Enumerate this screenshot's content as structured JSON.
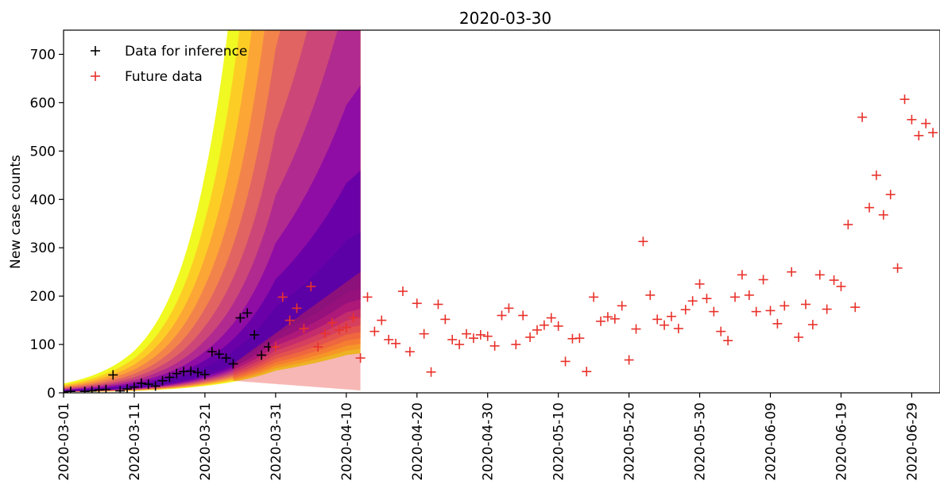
{
  "chart_data": {
    "type": "scatter",
    "title": "2020-03-30",
    "xlabel": "",
    "ylabel": "New case counts",
    "ylim": [
      0,
      750
    ],
    "xlim": [
      "2020-03-01",
      "2020-07-03"
    ],
    "grid": false,
    "legend_placement": "top-left",
    "yticks": [
      0,
      100,
      200,
      300,
      400,
      500,
      600,
      700
    ],
    "xticks": [
      "2020-03-01",
      "2020-03-11",
      "2020-03-21",
      "2020-03-31",
      "2020-04-10",
      "2020-04-20",
      "2020-04-30",
      "2020-05-10",
      "2020-05-20",
      "2020-05-30",
      "2020-06-09",
      "2020-06-19",
      "2020-06-29"
    ],
    "colors": {
      "inference": "#000000",
      "future": "#e8322b",
      "axis": "#000000"
    },
    "series": [
      {
        "name": "Data for inference",
        "marker": "+",
        "points": [
          [
            "2020-03-01",
            2
          ],
          [
            "2020-03-02",
            3
          ],
          [
            "2020-03-04",
            3
          ],
          [
            "2020-03-05",
            4
          ],
          [
            "2020-03-06",
            6
          ],
          [
            "2020-03-07",
            7
          ],
          [
            "2020-03-08",
            37
          ],
          [
            "2020-03-09",
            4
          ],
          [
            "2020-03-10",
            8
          ],
          [
            "2020-03-11",
            12
          ],
          [
            "2020-03-12",
            20
          ],
          [
            "2020-03-13",
            18
          ],
          [
            "2020-03-14",
            14
          ],
          [
            "2020-03-15",
            25
          ],
          [
            "2020-03-16",
            32
          ],
          [
            "2020-03-17",
            40
          ],
          [
            "2020-03-18",
            44
          ],
          [
            "2020-03-19",
            45
          ],
          [
            "2020-03-20",
            42
          ],
          [
            "2020-03-21",
            38
          ],
          [
            "2020-03-22",
            85
          ],
          [
            "2020-03-23",
            80
          ],
          [
            "2020-03-24",
            72
          ],
          [
            "2020-03-25",
            60
          ],
          [
            "2020-03-26",
            155
          ],
          [
            "2020-03-27",
            165
          ],
          [
            "2020-03-28",
            120
          ],
          [
            "2020-03-29",
            78
          ],
          [
            "2020-03-30",
            95
          ]
        ]
      },
      {
        "name": "Future data",
        "marker": "+",
        "points": [
          [
            "2020-03-31",
            95
          ],
          [
            "2020-04-01",
            198
          ],
          [
            "2020-04-02",
            150
          ],
          [
            "2020-04-03",
            175
          ],
          [
            "2020-04-04",
            133
          ],
          [
            "2020-04-05",
            220
          ],
          [
            "2020-04-06",
            95
          ],
          [
            "2020-04-07",
            123
          ],
          [
            "2020-04-08",
            145
          ],
          [
            "2020-04-09",
            130
          ],
          [
            "2020-04-10",
            135
          ],
          [
            "2020-04-11",
            155
          ],
          [
            "2020-04-12",
            72
          ],
          [
            "2020-04-13",
            198
          ],
          [
            "2020-04-14",
            127
          ],
          [
            "2020-04-15",
            150
          ],
          [
            "2020-04-16",
            110
          ],
          [
            "2020-04-17",
            102
          ],
          [
            "2020-04-18",
            210
          ],
          [
            "2020-04-19",
            85
          ],
          [
            "2020-04-20",
            185
          ],
          [
            "2020-04-21",
            122
          ],
          [
            "2020-04-22",
            43
          ],
          [
            "2020-04-23",
            183
          ],
          [
            "2020-04-24",
            152
          ],
          [
            "2020-04-25",
            110
          ],
          [
            "2020-04-26",
            100
          ],
          [
            "2020-04-27",
            122
          ],
          [
            "2020-04-28",
            113
          ],
          [
            "2020-04-29",
            120
          ],
          [
            "2020-04-30",
            117
          ],
          [
            "2020-05-01",
            97
          ],
          [
            "2020-05-02",
            160
          ],
          [
            "2020-05-03",
            175
          ],
          [
            "2020-05-04",
            100
          ],
          [
            "2020-05-05",
            160
          ],
          [
            "2020-05-06",
            115
          ],
          [
            "2020-05-07",
            130
          ],
          [
            "2020-05-08",
            140
          ],
          [
            "2020-05-09",
            155
          ],
          [
            "2020-05-10",
            138
          ],
          [
            "2020-05-11",
            65
          ],
          [
            "2020-05-12",
            112
          ],
          [
            "2020-05-13",
            113
          ],
          [
            "2020-05-14",
            44
          ],
          [
            "2020-05-15",
            198
          ],
          [
            "2020-05-16",
            148
          ],
          [
            "2020-05-17",
            157
          ],
          [
            "2020-05-18",
            153
          ],
          [
            "2020-05-19",
            180
          ],
          [
            "2020-05-20",
            68
          ],
          [
            "2020-05-21",
            132
          ],
          [
            "2020-05-22",
            313
          ],
          [
            "2020-05-23",
            202
          ],
          [
            "2020-05-24",
            152
          ],
          [
            "2020-05-25",
            140
          ],
          [
            "2020-05-26",
            158
          ],
          [
            "2020-05-27",
            133
          ],
          [
            "2020-05-28",
            172
          ],
          [
            "2020-05-29",
            190
          ],
          [
            "2020-05-30",
            225
          ],
          [
            "2020-05-31",
            195
          ],
          [
            "2020-06-01",
            168
          ],
          [
            "2020-06-02",
            127
          ],
          [
            "2020-06-03",
            108
          ],
          [
            "2020-06-04",
            198
          ],
          [
            "2020-06-05",
            244
          ],
          [
            "2020-06-06",
            202
          ],
          [
            "2020-06-07",
            168
          ],
          [
            "2020-06-08",
            234
          ],
          [
            "2020-06-09",
            170
          ],
          [
            "2020-06-10",
            143
          ],
          [
            "2020-06-11",
            180
          ],
          [
            "2020-06-12",
            250
          ],
          [
            "2020-06-13",
            115
          ],
          [
            "2020-06-14",
            183
          ],
          [
            "2020-06-15",
            141
          ],
          [
            "2020-06-16",
            244
          ],
          [
            "2020-06-17",
            173
          ],
          [
            "2020-06-18",
            233
          ],
          [
            "2020-06-19",
            220
          ],
          [
            "2020-06-20",
            348
          ],
          [
            "2020-06-21",
            177
          ],
          [
            "2020-06-22",
            570
          ],
          [
            "2020-06-23",
            383
          ],
          [
            "2020-06-24",
            450
          ],
          [
            "2020-06-25",
            368
          ],
          [
            "2020-06-26",
            410
          ],
          [
            "2020-06-27",
            258
          ],
          [
            "2020-06-28",
            607
          ],
          [
            "2020-06-29",
            565
          ],
          [
            "2020-06-30",
            532
          ],
          [
            "2020-07-01",
            557
          ],
          [
            "2020-07-02",
            538
          ]
        ]
      }
    ],
    "forecast_bands": {
      "start": "2020-03-01",
      "end": "2020-04-12",
      "colors": [
        "#f0f921",
        "#fcce25",
        "#fca636",
        "#f2844b",
        "#e16462",
        "#cc4778",
        "#b12a90",
        "#8f0da4",
        "#6a00a8",
        "#5c01a6"
      ],
      "median_points": [
        [
          "2020-03-01",
          4
        ],
        [
          "2020-03-11",
          12
        ],
        [
          "2020-03-21",
          42
        ],
        [
          "2020-03-31",
          135
        ],
        [
          "2020-04-10",
          230
        ],
        [
          "2020-04-12",
          240
        ]
      ],
      "posterior_spread": 0.88,
      "predictive_ceiling": 250
    }
  }
}
